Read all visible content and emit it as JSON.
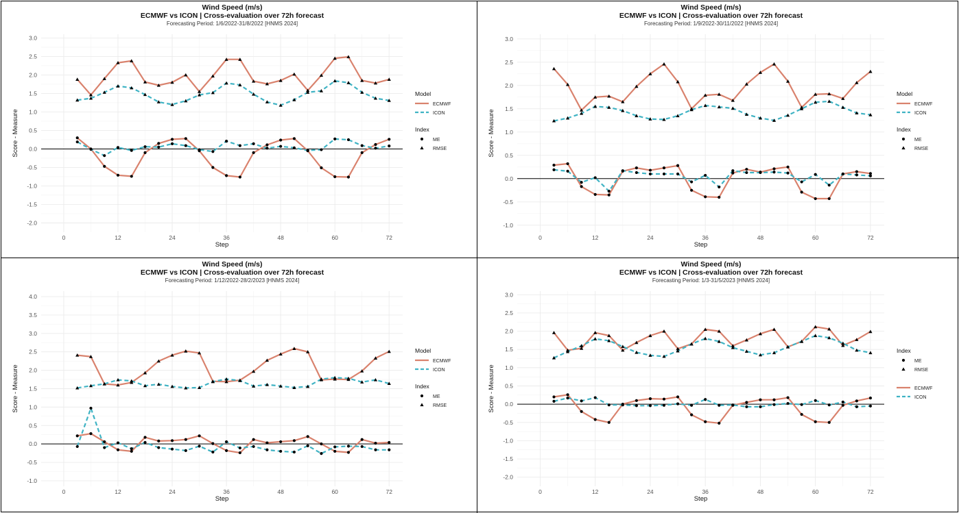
{
  "colors": {
    "ecmwf": "#d9826d",
    "icon": "#3fb3c4",
    "grid": "#ebebeb",
    "zero_line": "#000000",
    "marker": "#000000"
  },
  "chart_data": [
    {
      "type": "line",
      "title": "Wind Speed (m/s)",
      "title2": "ECMWF vs ICON | Cross-evaluation over 72h forecast",
      "subtitle": "Forecasting Period: 1/6/2022-31/8/2022 [HNMS 2024]",
      "xlabel": "Step",
      "ylabel": "Score - Measure",
      "xlim": [
        -5,
        75
      ],
      "ylim": [
        -2.25,
        3.1
      ],
      "xticks": [
        0,
        12,
        24,
        36,
        48,
        60,
        72
      ],
      "yticks": [
        -2.0,
        -1.5,
        -1.0,
        -0.5,
        0.0,
        0.5,
        1.0,
        1.5,
        2.0,
        2.5,
        3.0
      ],
      "x": [
        3,
        6,
        9,
        12,
        15,
        18,
        21,
        24,
        27,
        30,
        33,
        36,
        39,
        42,
        45,
        48,
        51,
        54,
        57,
        60,
        63,
        66,
        69,
        72
      ],
      "legend_order": [
        "model",
        "index"
      ],
      "legend": {
        "model_title": "Model",
        "model_items": [
          "ECMWF",
          "ICON"
        ],
        "index_title": "Index",
        "index_items": [
          "ME",
          "RMSE"
        ]
      },
      "series": [
        {
          "name": "ECMWF",
          "index": "RMSE",
          "values": [
            1.88,
            1.46,
            1.9,
            2.33,
            2.38,
            1.81,
            1.72,
            1.8,
            2.0,
            1.55,
            1.97,
            2.42,
            2.42,
            1.83,
            1.76,
            1.85,
            2.02,
            1.58,
            1.99,
            2.45,
            2.49,
            1.85,
            1.78,
            1.88
          ]
        },
        {
          "name": "ICON",
          "index": "RMSE",
          "values": [
            1.32,
            1.37,
            1.53,
            1.7,
            1.65,
            1.47,
            1.27,
            1.2,
            1.3,
            1.46,
            1.52,
            1.78,
            1.73,
            1.48,
            1.27,
            1.18,
            1.33,
            1.53,
            1.57,
            1.84,
            1.79,
            1.53,
            1.37,
            1.31
          ]
        },
        {
          "name": "ECMWF",
          "index": "ME",
          "values": [
            0.3,
            0.0,
            -0.47,
            -0.71,
            -0.74,
            -0.1,
            0.15,
            0.26,
            0.28,
            -0.05,
            -0.5,
            -0.72,
            -0.76,
            -0.1,
            0.11,
            0.24,
            0.28,
            -0.05,
            -0.51,
            -0.75,
            -0.76,
            -0.1,
            0.12,
            0.26
          ]
        },
        {
          "name": "ICON",
          "index": "ME",
          "values": [
            0.19,
            -0.01,
            -0.18,
            0.04,
            -0.04,
            0.06,
            0.05,
            0.14,
            0.09,
            -0.02,
            -0.07,
            0.21,
            0.09,
            0.14,
            0.02,
            0.07,
            0.03,
            -0.04,
            -0.02,
            0.27,
            0.25,
            0.09,
            0.02,
            0.08
          ]
        }
      ]
    },
    {
      "type": "line",
      "title": "Wind Speed (m/s)",
      "title2": "ECMWF vs ICON | Cross-evaluation over 72h forecast",
      "subtitle": "Forecasting Period: 1/9/2022-30/11/2022 [HNMS 2024]",
      "xlabel": "Step",
      "ylabel": "Score - Measure",
      "xlim": [
        -5,
        75
      ],
      "ylim": [
        -1.15,
        3.1
      ],
      "xticks": [
        0,
        12,
        24,
        36,
        48,
        60,
        72
      ],
      "yticks": [
        -1.0,
        -0.5,
        0.0,
        0.5,
        1.0,
        1.5,
        2.0,
        2.5,
        3.0
      ],
      "x": [
        3,
        6,
        9,
        12,
        15,
        18,
        21,
        24,
        27,
        30,
        33,
        36,
        39,
        42,
        45,
        48,
        51,
        54,
        57,
        60,
        63,
        66,
        69,
        72
      ],
      "legend_order": [
        "model",
        "index"
      ],
      "legend": {
        "model_title": "Model",
        "model_items": [
          "ECMWF",
          "ICON"
        ],
        "index_title": "Index",
        "index_items": [
          "ME",
          "RMSE"
        ]
      },
      "series": [
        {
          "name": "ECMWF",
          "index": "RMSE",
          "values": [
            2.36,
            2.02,
            1.47,
            1.75,
            1.77,
            1.65,
            1.98,
            2.25,
            2.46,
            2.08,
            1.5,
            1.79,
            1.81,
            1.68,
            2.03,
            2.28,
            2.46,
            2.09,
            1.53,
            1.81,
            1.82,
            1.72,
            2.06,
            2.3
          ]
        },
        {
          "name": "ICON",
          "index": "RMSE",
          "values": [
            1.24,
            1.3,
            1.4,
            1.55,
            1.53,
            1.46,
            1.35,
            1.28,
            1.27,
            1.35,
            1.48,
            1.57,
            1.54,
            1.51,
            1.38,
            1.3,
            1.25,
            1.36,
            1.5,
            1.64,
            1.66,
            1.53,
            1.41,
            1.37
          ]
        },
        {
          "name": "ECMWF",
          "index": "ME",
          "values": [
            0.29,
            0.32,
            -0.17,
            -0.34,
            -0.35,
            0.16,
            0.23,
            0.18,
            0.23,
            0.28,
            -0.25,
            -0.39,
            -0.4,
            0.12,
            0.2,
            0.14,
            0.21,
            0.25,
            -0.29,
            -0.43,
            -0.43,
            0.1,
            0.15,
            0.11
          ]
        },
        {
          "name": "ICON",
          "index": "ME",
          "values": [
            0.19,
            0.16,
            -0.08,
            0.02,
            -0.27,
            0.17,
            0.13,
            0.1,
            0.1,
            0.1,
            -0.07,
            0.07,
            -0.18,
            0.17,
            0.13,
            0.13,
            0.14,
            0.12,
            -0.07,
            0.09,
            -0.14,
            0.1,
            0.08,
            0.06
          ]
        }
      ]
    },
    {
      "type": "line",
      "title": "Wind Speed (m/s)",
      "title2": "ECMWF vs ICON | Cross-evaluation over 72h forecast",
      "subtitle": "Forecasting Period: 1/12/2022-28/2/2023 [HNMS 2024]",
      "xlabel": "Step",
      "ylabel": "Score - Measure",
      "xlim": [
        -5,
        75
      ],
      "ylim": [
        -1.15,
        4.15
      ],
      "xticks": [
        0,
        12,
        24,
        36,
        48,
        60,
        72
      ],
      "yticks": [
        -1.0,
        -0.5,
        0.0,
        0.5,
        1.0,
        1.5,
        2.0,
        2.5,
        3.0,
        3.5,
        4.0
      ],
      "x": [
        3,
        6,
        9,
        12,
        15,
        18,
        21,
        24,
        27,
        30,
        33,
        36,
        39,
        42,
        45,
        48,
        51,
        54,
        57,
        60,
        63,
        66,
        69,
        72
      ],
      "legend_order": [
        "model",
        "index"
      ],
      "legend": {
        "model_title": "Model",
        "model_items": [
          "ECMWF",
          "ICON"
        ],
        "index_title": "Index",
        "index_items": [
          "ME",
          "RMSE"
        ]
      },
      "series": [
        {
          "name": "ECMWF",
          "index": "RMSE",
          "values": [
            2.41,
            2.37,
            1.63,
            1.6,
            1.67,
            1.93,
            2.25,
            2.41,
            2.52,
            2.47,
            1.7,
            1.69,
            1.73,
            1.97,
            2.27,
            2.44,
            2.59,
            2.5,
            1.74,
            1.76,
            1.75,
            1.98,
            2.33,
            2.51
          ]
        },
        {
          "name": "ICON",
          "index": "RMSE",
          "values": [
            1.52,
            1.58,
            1.63,
            1.74,
            1.71,
            1.58,
            1.62,
            1.56,
            1.52,
            1.53,
            1.69,
            1.76,
            1.72,
            1.57,
            1.61,
            1.57,
            1.53,
            1.56,
            1.76,
            1.8,
            1.78,
            1.68,
            1.74,
            1.64
          ]
        },
        {
          "name": "ECMWF",
          "index": "ME",
          "values": [
            0.22,
            0.28,
            0.06,
            -0.16,
            -0.2,
            0.18,
            0.08,
            0.09,
            0.12,
            0.22,
            0.01,
            -0.18,
            -0.24,
            0.12,
            0.03,
            0.06,
            0.09,
            0.2,
            0.0,
            -0.2,
            -0.23,
            0.12,
            0.02,
            0.04
          ]
        },
        {
          "name": "ICON",
          "index": "ME",
          "values": [
            -0.07,
            0.97,
            -0.1,
            0.03,
            -0.13,
            0.04,
            -0.1,
            -0.14,
            -0.18,
            -0.06,
            -0.22,
            0.06,
            -0.11,
            -0.07,
            -0.16,
            -0.2,
            -0.22,
            -0.05,
            -0.26,
            -0.08,
            -0.06,
            -0.07,
            -0.16,
            -0.16
          ]
        }
      ]
    },
    {
      "type": "line",
      "title": "Wind Speed (m/s)",
      "title2": "ECMWF vs ICON | Cross-evaluation over 72h forecast",
      "subtitle": "Forecasting Period: 1/3-31/5/2023 [HNMS 2024]",
      "xlabel": "Step",
      "ylabel": "Score - Measure",
      "xlim": [
        -5,
        75
      ],
      "ylim": [
        -2.25,
        3.1
      ],
      "xticks": [
        0,
        12,
        24,
        36,
        48,
        60,
        72
      ],
      "yticks": [
        -2.0,
        -1.5,
        -1.0,
        -0.5,
        0.0,
        0.5,
        1.0,
        1.5,
        2.0,
        2.5,
        3.0
      ],
      "x": [
        3,
        6,
        9,
        12,
        15,
        18,
        21,
        24,
        27,
        30,
        33,
        36,
        39,
        42,
        45,
        48,
        51,
        54,
        57,
        60,
        63,
        66,
        69,
        72
      ],
      "legend_order": [
        "index",
        "model"
      ],
      "legend": {
        "model_title": "",
        "model_items": [
          "ECMWF",
          "ICON"
        ],
        "index_title": "Index",
        "index_items": [
          "ME",
          "RMSE"
        ]
      },
      "series": [
        {
          "name": "ECMWF",
          "index": "RMSE",
          "values": [
            1.96,
            1.48,
            1.53,
            1.96,
            1.88,
            1.48,
            1.69,
            1.88,
            2.0,
            1.52,
            1.65,
            2.05,
            2.0,
            1.6,
            1.76,
            1.93,
            2.05,
            1.57,
            1.72,
            2.12,
            2.06,
            1.61,
            1.77,
            1.99
          ]
        },
        {
          "name": "ICON",
          "index": "RMSE",
          "values": [
            1.27,
            1.44,
            1.6,
            1.79,
            1.74,
            1.58,
            1.42,
            1.34,
            1.31,
            1.46,
            1.65,
            1.8,
            1.72,
            1.55,
            1.45,
            1.35,
            1.41,
            1.57,
            1.72,
            1.88,
            1.82,
            1.67,
            1.48,
            1.41
          ]
        },
        {
          "name": "ECMWF",
          "index": "ME",
          "values": [
            0.2,
            0.26,
            -0.2,
            -0.42,
            -0.5,
            0.0,
            0.1,
            0.15,
            0.14,
            0.2,
            -0.29,
            -0.48,
            -0.52,
            -0.03,
            0.05,
            0.12,
            0.12,
            0.18,
            -0.28,
            -0.48,
            -0.5,
            -0.03,
            0.09,
            0.17
          ]
        },
        {
          "name": "ICON",
          "index": "ME",
          "values": [
            0.08,
            0.17,
            0.09,
            0.18,
            -0.02,
            -0.02,
            -0.04,
            -0.04,
            -0.03,
            0.01,
            -0.03,
            0.13,
            -0.03,
            -0.02,
            -0.07,
            -0.07,
            -0.01,
            0.02,
            -0.01,
            0.1,
            -0.02,
            0.06,
            -0.07,
            -0.05
          ]
        }
      ]
    }
  ]
}
